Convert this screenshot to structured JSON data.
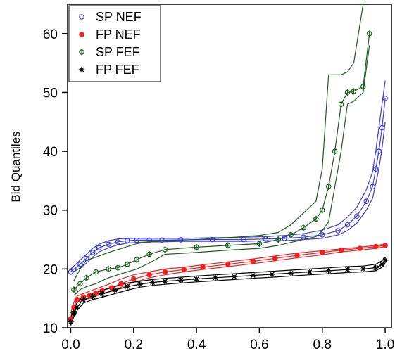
{
  "chart_data": {
    "type": "scatter",
    "ylabel": "Bid Quantiles",
    "xlabel": "",
    "xlim": [
      -0.01,
      1.02
    ],
    "ylim": [
      10,
      65
    ],
    "xticks": [
      "0.0",
      "0.2",
      "0.4",
      "0.6",
      "0.8",
      "1.0"
    ],
    "xtick_values": [
      0,
      0.2,
      0.4,
      0.6,
      0.8,
      1.0
    ],
    "yticks": [
      "10",
      "20",
      "30",
      "40",
      "50",
      "60"
    ],
    "ytick_values": [
      10,
      20,
      30,
      40,
      50,
      60
    ],
    "legend_position": "top-left",
    "series": [
      {
        "name": "SP NEF",
        "color": "#3b3bdd",
        "marker": "open-circle",
        "x": [
          0.0,
          0.01,
          0.03,
          0.05,
          0.07,
          0.09,
          0.12,
          0.15,
          0.18,
          0.21,
          0.25,
          0.29,
          0.35,
          0.45,
          0.55,
          0.62,
          0.68,
          0.74,
          0.8,
          0.85,
          0.88,
          0.91,
          0.94,
          0.96,
          0.97,
          0.98,
          0.99,
          1.0
        ],
        "y": [
          19.5,
          20.0,
          20.8,
          21.8,
          22.8,
          23.6,
          24.2,
          24.6,
          24.8,
          24.9,
          24.9,
          24.9,
          24.95,
          25.0,
          25.0,
          25.1,
          25.2,
          25.4,
          25.8,
          26.5,
          27.5,
          29.0,
          31.5,
          34.0,
          37.0,
          40.0,
          44.0,
          49.0
        ],
        "upper": [
          20.0,
          20.5,
          21.5,
          22.5,
          23.5,
          24.2,
          24.8,
          25.1,
          25.2,
          25.2,
          25.2,
          25.2,
          25.2,
          25.3,
          25.4,
          25.5,
          25.7,
          26.0,
          26.6,
          27.5,
          28.8,
          30.5,
          33.5,
          36.5,
          40.0,
          44.0,
          48.0,
          52.0
        ],
        "lower": [
          19.0,
          19.5,
          20.2,
          21.0,
          22.0,
          22.9,
          23.6,
          24.1,
          24.4,
          24.5,
          24.6,
          24.6,
          24.7,
          24.7,
          24.7,
          24.8,
          24.8,
          25.0,
          25.2,
          25.8,
          26.5,
          27.8,
          30.0,
          32.0,
          34.5,
          37.0,
          40.5,
          45.0
        ]
      },
      {
        "name": "FP NEF",
        "color": "#ee2222",
        "marker": "filled-circle",
        "x": [
          0.0,
          0.01,
          0.02,
          0.04,
          0.06,
          0.08,
          0.1,
          0.13,
          0.16,
          0.2,
          0.25,
          0.3,
          0.36,
          0.42,
          0.5,
          0.58,
          0.65,
          0.72,
          0.8,
          0.86,
          0.92,
          0.97,
          1.0
        ],
        "y": [
          11.5,
          13.5,
          14.8,
          15.2,
          15.5,
          15.9,
          16.3,
          16.8,
          17.5,
          18.3,
          19.0,
          19.5,
          19.9,
          20.3,
          20.8,
          21.3,
          21.8,
          22.3,
          22.8,
          23.2,
          23.5,
          23.8,
          24.0
        ],
        "upper": [
          12.5,
          14.3,
          15.4,
          15.8,
          16.2,
          16.6,
          17.0,
          17.6,
          18.3,
          19.0,
          19.5,
          20.0,
          20.3,
          20.7,
          21.2,
          21.7,
          22.2,
          22.7,
          23.1,
          23.4,
          23.7,
          24.0,
          24.2
        ],
        "lower": [
          10.8,
          12.8,
          14.3,
          14.7,
          15.0,
          15.4,
          15.8,
          16.2,
          16.9,
          17.7,
          18.5,
          19.0,
          19.5,
          19.9,
          20.4,
          20.9,
          21.4,
          21.9,
          22.4,
          22.9,
          23.2,
          23.5,
          23.8
        ]
      },
      {
        "name": "SP FEF",
        "color": "#1e5c1e",
        "marker": "half-circle",
        "x": [
          0.01,
          0.03,
          0.05,
          0.08,
          0.12,
          0.15,
          0.18,
          0.21,
          0.25,
          0.3,
          0.4,
          0.5,
          0.6,
          0.66,
          0.7,
          0.74,
          0.78,
          0.8,
          0.82,
          0.84,
          0.86,
          0.88,
          0.9,
          0.93,
          0.95
        ],
        "y": [
          16.5,
          17.5,
          18.5,
          19.5,
          20.0,
          20.2,
          20.8,
          21.6,
          22.5,
          23.3,
          23.7,
          24.0,
          24.3,
          25.0,
          25.8,
          27.0,
          28.5,
          30.0,
          34.0,
          40.0,
          48.0,
          50.0,
          50.2,
          51.0,
          60.0
        ],
        "upper": [
          18.0,
          20.0,
          21.5,
          22.0,
          22.8,
          23.3,
          23.8,
          24.3,
          24.6,
          24.8,
          25.0,
          25.3,
          25.7,
          26.2,
          27.5,
          29.5,
          31.5,
          37.0,
          53.0,
          53.0,
          53.0,
          53.5,
          55.0,
          65.0,
          65.0
        ],
        "lower": [
          15.5,
          16.5,
          17.0,
          17.5,
          18.5,
          19.0,
          19.5,
          20.0,
          21.0,
          22.5,
          22.8,
          23.2,
          23.5,
          24.0,
          24.5,
          25.0,
          25.5,
          26.5,
          28.0,
          34.0,
          40.0,
          48.0,
          48.5,
          50.0,
          58.0
        ]
      },
      {
        "name": "FP FEF",
        "color": "#000000",
        "marker": "asterisk",
        "x": [
          0.0,
          0.01,
          0.02,
          0.04,
          0.07,
          0.1,
          0.14,
          0.18,
          0.22,
          0.26,
          0.3,
          0.35,
          0.4,
          0.46,
          0.52,
          0.58,
          0.64,
          0.7,
          0.76,
          0.82,
          0.88,
          0.93,
          0.97,
          0.99,
          1.0
        ],
        "y": [
          11.0,
          12.5,
          13.5,
          14.8,
          15.3,
          15.8,
          16.4,
          17.0,
          17.4,
          17.7,
          17.9,
          18.1,
          18.3,
          18.5,
          18.7,
          18.9,
          19.1,
          19.3,
          19.5,
          19.7,
          19.9,
          20.0,
          20.2,
          20.8,
          21.5
        ],
        "upper": [
          11.8,
          13.2,
          14.2,
          15.4,
          15.9,
          16.4,
          17.0,
          17.6,
          17.9,
          18.2,
          18.4,
          18.6,
          18.8,
          19.0,
          19.2,
          19.4,
          19.6,
          19.8,
          20.0,
          20.2,
          20.4,
          20.5,
          20.8,
          21.4,
          22.0
        ],
        "lower": [
          10.4,
          11.9,
          12.9,
          14.2,
          14.8,
          15.2,
          15.8,
          16.4,
          16.9,
          17.2,
          17.4,
          17.6,
          17.8,
          18.0,
          18.2,
          18.4,
          18.6,
          18.8,
          19.0,
          19.2,
          19.4,
          19.5,
          19.7,
          20.3,
          21.0
        ]
      }
    ]
  }
}
